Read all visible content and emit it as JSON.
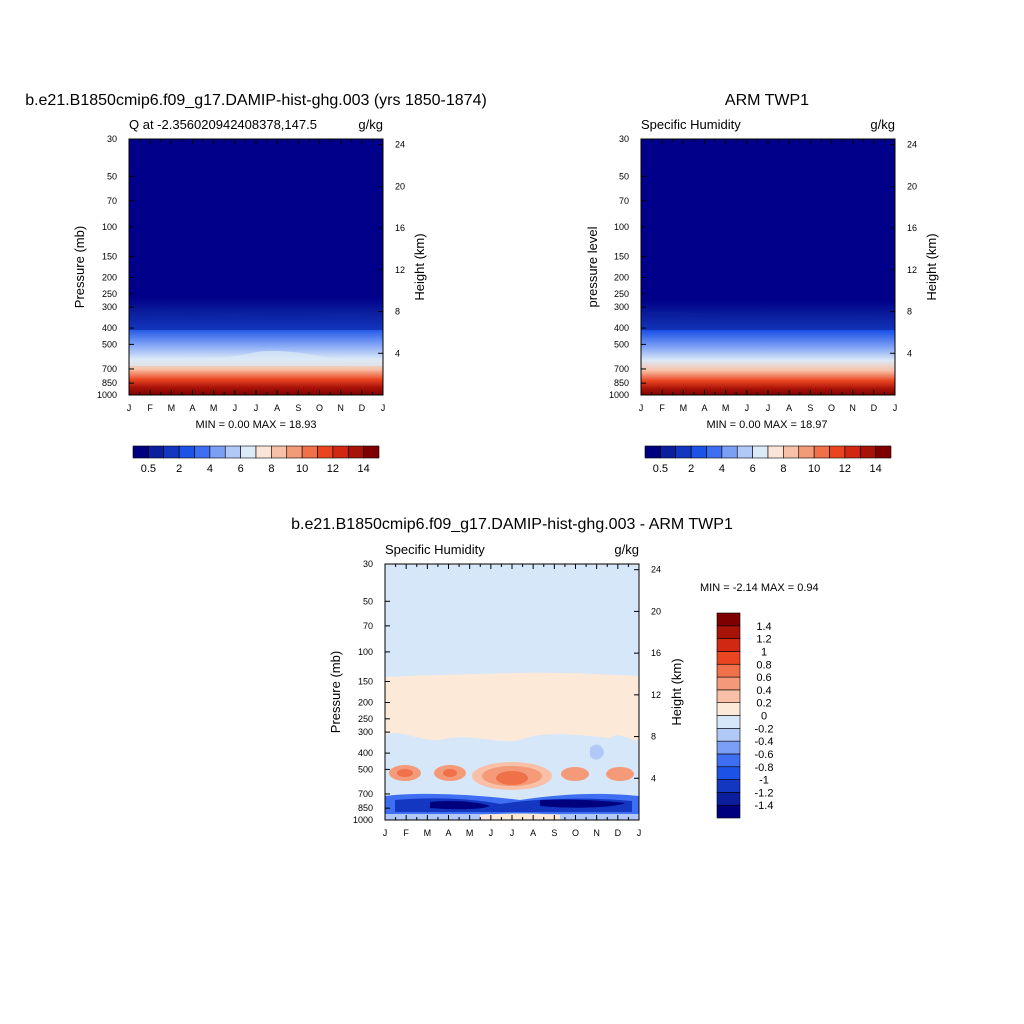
{
  "chart_data": [
    {
      "type": "heatmap",
      "title": "b.e21.B1850cmip6.f09_g17.DAMIP-hist-ghg.003 (yrs 1850-1874)",
      "subtitle_left": "Q at -2.356020942408378,147.5",
      "subtitle_right": "g/kg",
      "ylabel": "Pressure (mb)",
      "ylabel_right": "Height (km)",
      "x_ticks": [
        "J",
        "F",
        "M",
        "A",
        "M",
        "J",
        "J",
        "A",
        "S",
        "O",
        "N",
        "D",
        "J"
      ],
      "y_ticks": [
        30,
        50,
        70,
        100,
        150,
        200,
        250,
        300,
        400,
        500,
        700,
        850,
        1000
      ],
      "y_scale": "log",
      "ylim": [
        30,
        1000
      ],
      "height_ticks": [
        4,
        8,
        12,
        16,
        20,
        24
      ],
      "min_max_text": "MIN =   0.00 MAX =  18.93",
      "colorbar": {
        "orientation": "horizontal",
        "levels": [
          0.5,
          1,
          2,
          3,
          4,
          5,
          6,
          7,
          8,
          9,
          10,
          11,
          12,
          13,
          14
        ],
        "labels": [
          "0.5",
          "2",
          "4",
          "6",
          "8",
          "10",
          "12",
          "14"
        ],
        "colors": [
          "#00007f",
          "#0b1f9e",
          "#1437c2",
          "#1d52e6",
          "#3e6ff2",
          "#7b9ff5",
          "#b2c9f7",
          "#dce9f7",
          "#fbe4d6",
          "#f8c0a6",
          "#f59a78",
          "#f0704a",
          "#ea4420",
          "#d02812",
          "#a81308",
          "#7f0000"
        ]
      }
    },
    {
      "type": "heatmap",
      "title": "ARM TWP1",
      "subtitle_left": "Specific Humidity",
      "subtitle_right": "g/kg",
      "ylabel": "pressure level",
      "ylabel_right": "Height (km)",
      "x_ticks": [
        "J",
        "F",
        "M",
        "A",
        "M",
        "J",
        "J",
        "A",
        "S",
        "O",
        "N",
        "D",
        "J"
      ],
      "y_ticks": [
        30,
        50,
        70,
        100,
        150,
        200,
        250,
        300,
        400,
        500,
        700,
        850,
        1000
      ],
      "y_scale": "log",
      "ylim": [
        30,
        1000
      ],
      "height_ticks": [
        4,
        8,
        12,
        16,
        20,
        24
      ],
      "min_max_text": "MIN =   0.00 MAX =  18.97",
      "colorbar": {
        "orientation": "horizontal",
        "levels": [
          0.5,
          1,
          2,
          3,
          4,
          5,
          6,
          7,
          8,
          9,
          10,
          11,
          12,
          13,
          14
        ],
        "labels": [
          "0.5",
          "2",
          "4",
          "6",
          "8",
          "10",
          "12",
          "14"
        ],
        "colors": [
          "#00007f",
          "#0b1f9e",
          "#1437c2",
          "#1d52e6",
          "#3e6ff2",
          "#7b9ff5",
          "#b2c9f7",
          "#dce9f7",
          "#fbe4d6",
          "#f8c0a6",
          "#f59a78",
          "#f0704a",
          "#ea4420",
          "#d02812",
          "#a81308",
          "#7f0000"
        ]
      }
    },
    {
      "type": "heatmap",
      "title": "b.e21.B1850cmip6.f09_g17.DAMIP-hist-ghg.003 - ARM TWP1",
      "subtitle_left": "Specific Humidity",
      "subtitle_right": "g/kg",
      "ylabel": "Pressure (mb)",
      "ylabel_right": "Height (km)",
      "x_ticks": [
        "J",
        "F",
        "M",
        "A",
        "M",
        "J",
        "J",
        "A",
        "S",
        "O",
        "N",
        "D",
        "J"
      ],
      "y_ticks": [
        30,
        50,
        70,
        100,
        150,
        200,
        250,
        300,
        400,
        500,
        700,
        850,
        1000
      ],
      "y_scale": "log",
      "ylim": [
        30,
        1000
      ],
      "height_ticks": [
        4,
        8,
        12,
        16,
        20,
        24
      ],
      "min_max_text": "MIN =  -2.14 MAX =   0.94",
      "colorbar": {
        "orientation": "vertical",
        "levels": [
          -1.4,
          -1.2,
          -1,
          -0.8,
          -0.6,
          -0.4,
          -0.2,
          0,
          0.2,
          0.4,
          0.6,
          0.8,
          1,
          1.2,
          1.4
        ],
        "labels": [
          "-1.4",
          "-1.2",
          "-1",
          "-0.8",
          "-0.6",
          "-0.4",
          "-0.2",
          "0",
          "0.2",
          "0.4",
          "0.6",
          "0.8",
          "1",
          "1.2",
          "1.4"
        ],
        "colors": [
          "#00007f",
          "#0b1f9e",
          "#1437c2",
          "#1d52e6",
          "#3e6ff2",
          "#7b9ff5",
          "#b2c9f7",
          "#d6e7fa",
          "#fde9d8",
          "#f8c0a6",
          "#f59a78",
          "#f0704a",
          "#ea4420",
          "#d02812",
          "#a81308",
          "#7f0000"
        ]
      }
    }
  ]
}
